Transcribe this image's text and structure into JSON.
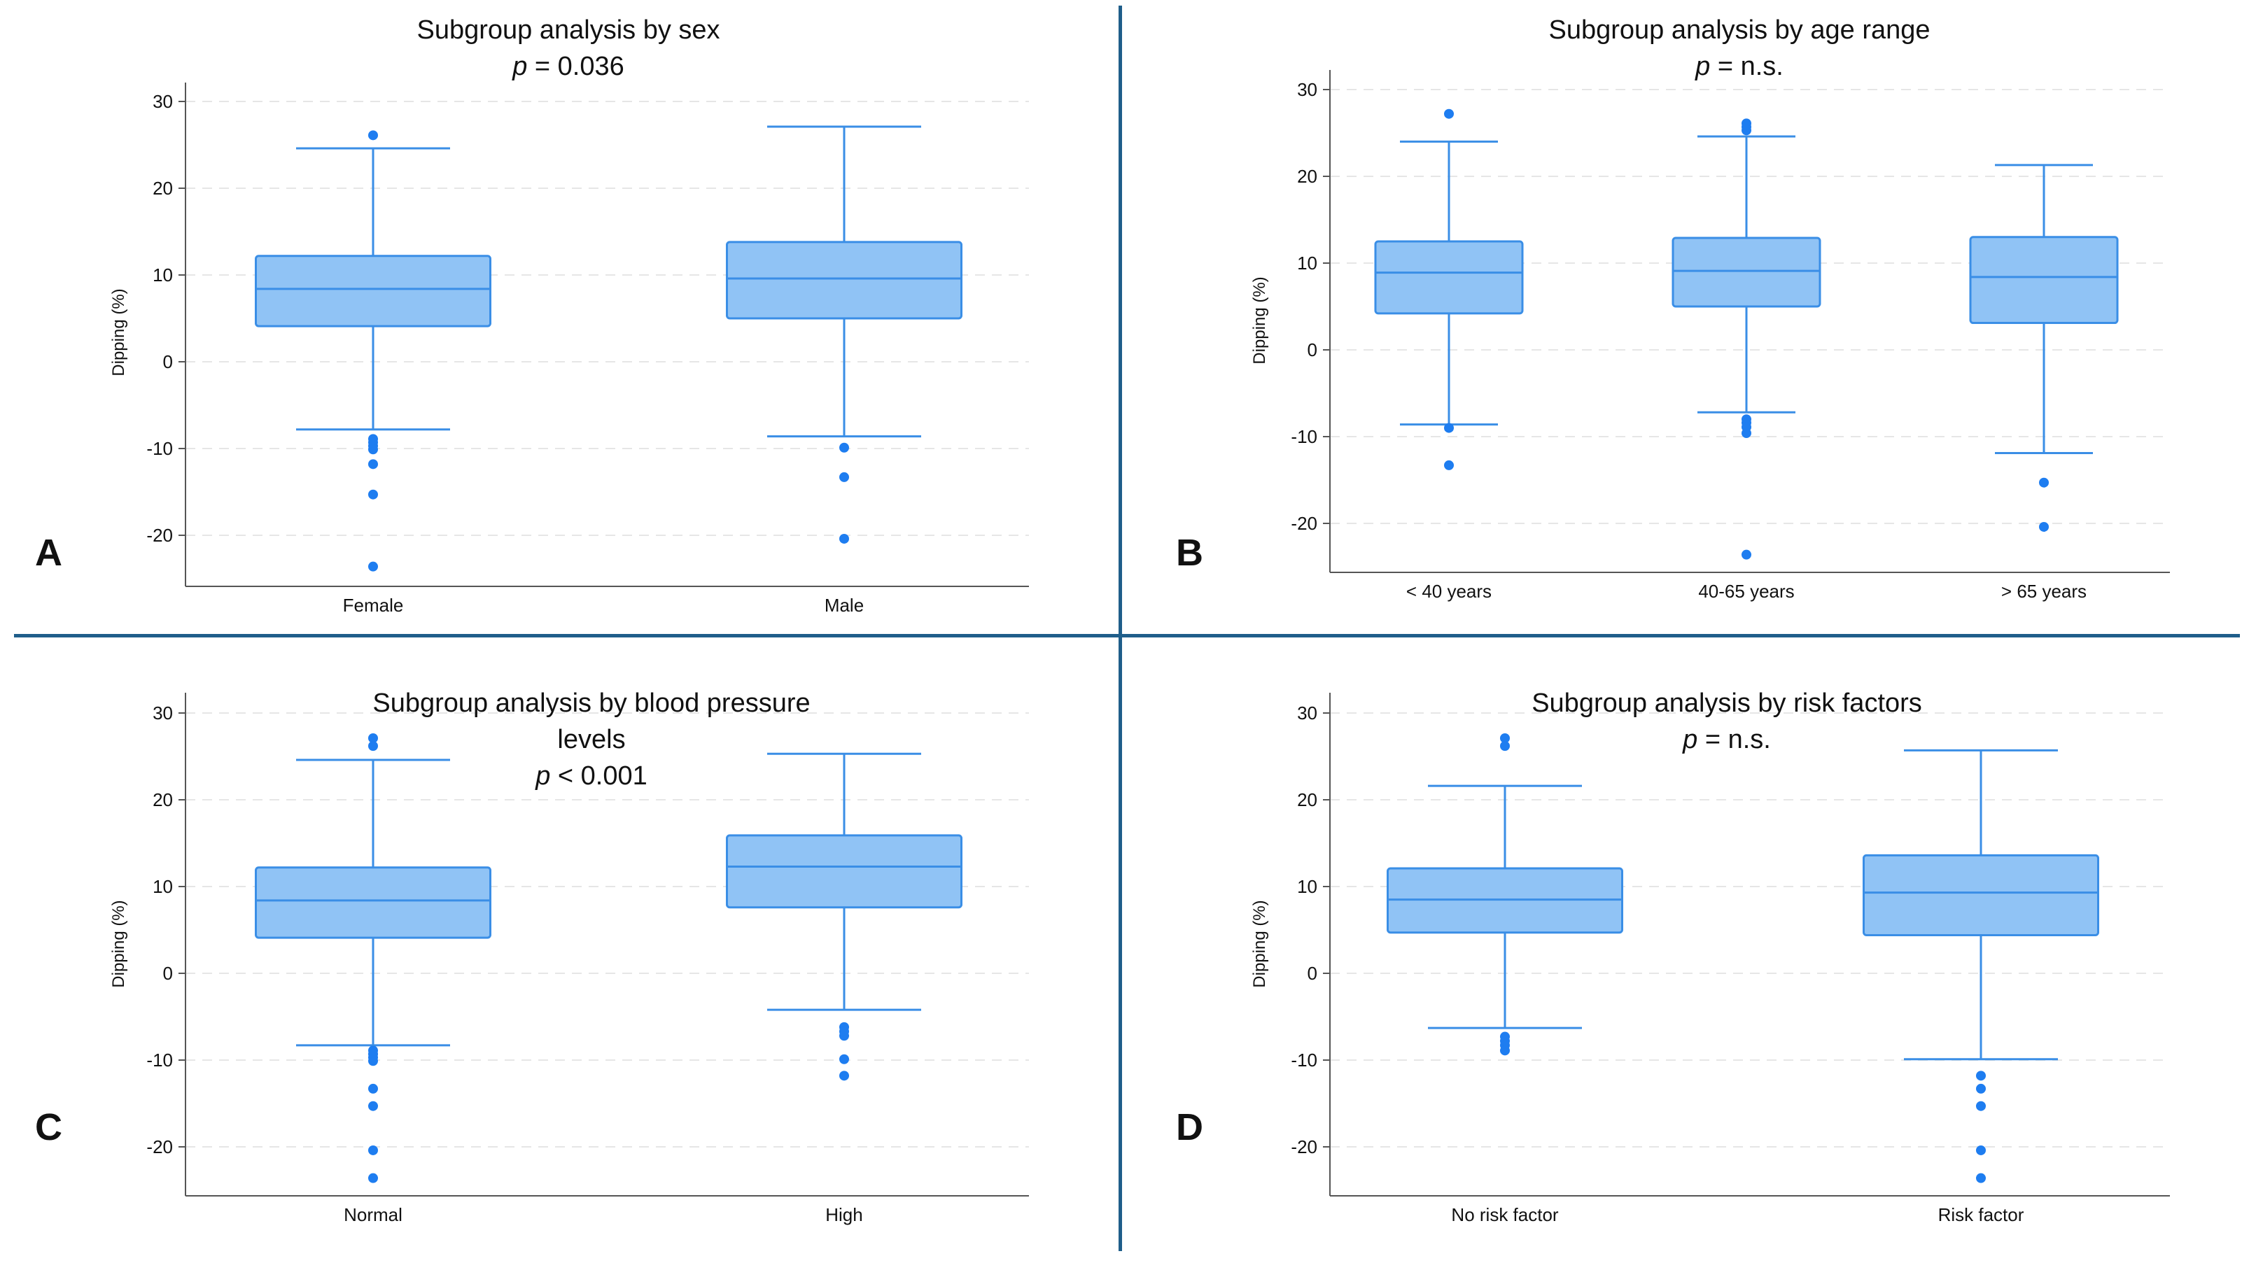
{
  "figure": {
    "colors": {
      "box_fill": "#90c3f5",
      "box_edge": "#3a8ee6",
      "outlier": "#1e7df0",
      "divider": "#1f5e8a",
      "gridline": "#e6e6e6"
    }
  },
  "chart_data": [
    {
      "type": "box",
      "panel_letter": "A",
      "title_lines": [
        "Subgroup analysis by sex"
      ],
      "p_label": "p",
      "p_value": "= 0.036",
      "ylabel": "Dipping (%)",
      "ylim": [
        -26,
        32
      ],
      "yticks": [
        30,
        20,
        10,
        0,
        -10,
        -20
      ],
      "grid": "horizontal-dashed",
      "categories": [
        "Female",
        "Male"
      ],
      "boxes": [
        {
          "whisker_low": -7.8,
          "q1": 4.1,
          "median": 8.4,
          "q3": 12.2,
          "whisker_high": 24.6,
          "outliers": [
            26.1,
            -8.9,
            -9.3,
            -9.7,
            -10.1,
            -11.8,
            -15.3,
            -23.6
          ]
        },
        {
          "whisker_low": -8.6,
          "q1": 5.0,
          "median": 9.6,
          "q3": 13.8,
          "whisker_high": 27.1,
          "outliers": [
            -9.9,
            -13.3,
            -20.4
          ]
        }
      ]
    },
    {
      "type": "box",
      "panel_letter": "B",
      "title_lines": [
        "Subgroup analysis by age range"
      ],
      "p_label": "p",
      "p_value": "= n.s.",
      "ylabel": "Dipping (%)",
      "ylim": [
        -26,
        32
      ],
      "yticks": [
        30,
        20,
        10,
        0,
        -10,
        -20
      ],
      "grid": "horizontal-dashed",
      "categories": [
        "< 40 years",
        "40-65 years",
        "> 65 years"
      ],
      "boxes": [
        {
          "whisker_low": -8.6,
          "q1": 4.2,
          "median": 8.9,
          "q3": 12.5,
          "whisker_high": 24.0,
          "outliers": [
            27.2,
            -9.0,
            -13.3
          ]
        },
        {
          "whisker_low": -7.2,
          "q1": 5.0,
          "median": 9.1,
          "q3": 12.9,
          "whisker_high": 24.6,
          "outliers": [
            26.1,
            25.7,
            25.3,
            -8.0,
            -8.4,
            -8.9,
            -9.6,
            -23.6
          ]
        },
        {
          "whisker_low": -11.9,
          "q1": 3.1,
          "median": 8.4,
          "q3": 13.0,
          "whisker_high": 21.3,
          "outliers": [
            -15.3,
            -20.4
          ]
        }
      ]
    },
    {
      "type": "box",
      "panel_letter": "C",
      "title_lines": [
        "Subgroup analysis by blood pressure",
        "levels"
      ],
      "p_label": "p",
      "p_value": "< 0.001",
      "ylabel": "Dipping (%)",
      "ylim": [
        -26,
        32
      ],
      "yticks": [
        30,
        20,
        10,
        0,
        -10,
        -20
      ],
      "grid": "horizontal-dashed",
      "categories": [
        "Normal",
        "High"
      ],
      "boxes": [
        {
          "whisker_low": -8.3,
          "q1": 4.1,
          "median": 8.4,
          "q3": 12.2,
          "whisker_high": 24.6,
          "outliers": [
            27.1,
            26.2,
            -8.9,
            -9.3,
            -9.7,
            -10.1,
            -13.3,
            -15.3,
            -20.4,
            -23.6
          ]
        },
        {
          "whisker_low": -4.2,
          "q1": 7.6,
          "median": 12.3,
          "q3": 15.9,
          "whisker_high": 25.3,
          "outliers": [
            -6.2,
            -6.7,
            -7.2,
            -9.9,
            -11.8
          ]
        }
      ]
    },
    {
      "type": "box",
      "panel_letter": "D",
      "title_lines": [
        "Subgroup analysis by risk factors"
      ],
      "p_label": "p",
      "p_value": "= n.s.",
      "ylabel": "Dipping (%)",
      "ylim": [
        -26,
        32
      ],
      "yticks": [
        30,
        20,
        10,
        0,
        -10,
        -20
      ],
      "grid": "horizontal-dashed",
      "categories": [
        "No risk factor",
        "Risk factor"
      ],
      "boxes": [
        {
          "whisker_low": -6.3,
          "q1": 4.7,
          "median": 8.5,
          "q3": 12.1,
          "whisker_high": 21.6,
          "outliers": [
            27.1,
            26.2,
            -7.3,
            -7.8,
            -8.3,
            -8.9
          ]
        },
        {
          "whisker_low": -9.9,
          "q1": 4.4,
          "median": 9.3,
          "q3": 13.6,
          "whisker_high": 25.7,
          "outliers": [
            -11.8,
            -13.3,
            -15.3,
            -20.4,
            -23.6
          ]
        }
      ]
    }
  ]
}
